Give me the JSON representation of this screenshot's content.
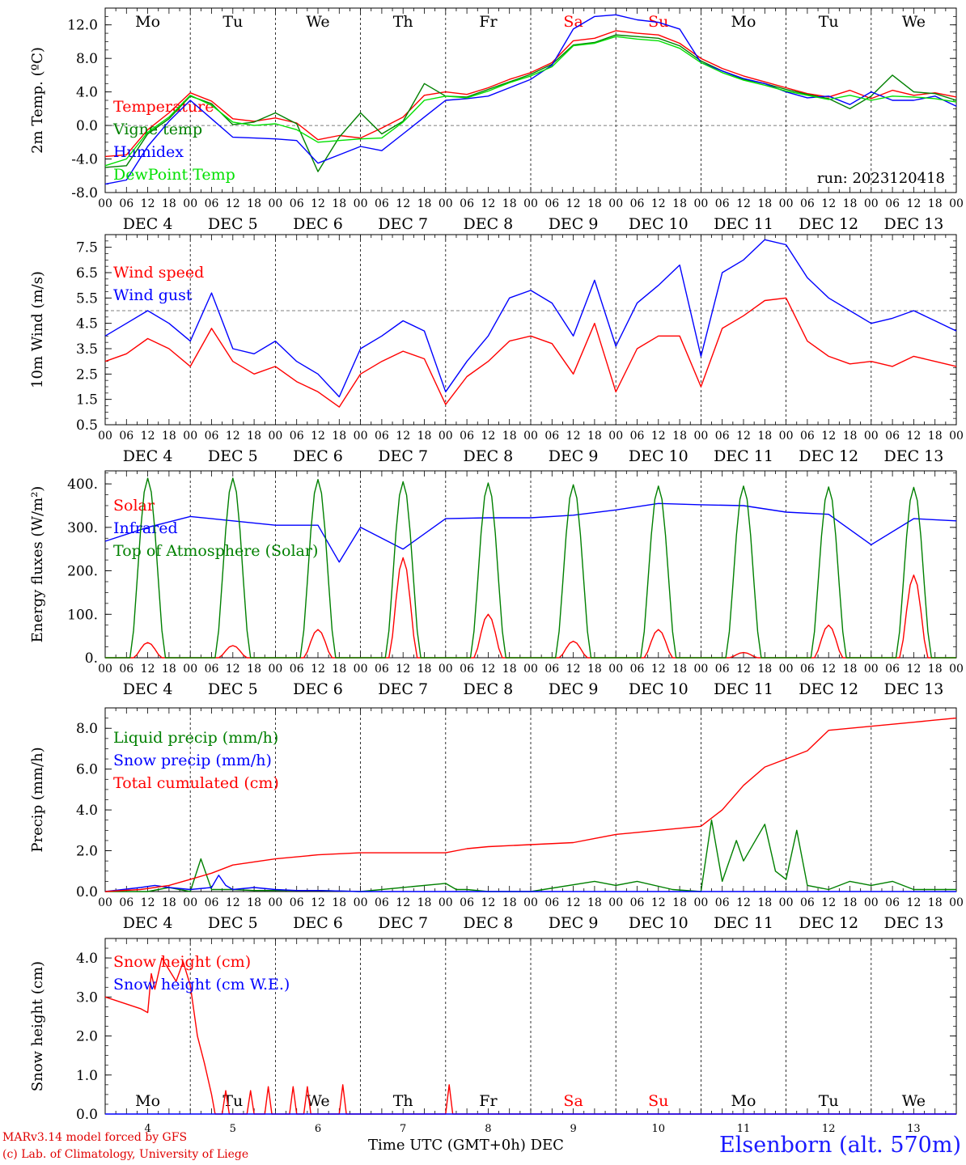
{
  "chart_data": [
    {
      "type": "line",
      "ylabel": "2m Temp. (ºC)",
      "ylim": [
        -8,
        14
      ],
      "yticks": [
        "-8.0",
        "-4.0",
        "0.0",
        "4.0",
        "8.0",
        "12.0"
      ],
      "ytick_values": [
        -8,
        -4,
        0,
        4,
        8,
        12
      ],
      "reference_line": 0,
      "day_names": [
        "Mo",
        "Tu",
        "We",
        "Th",
        "Fr",
        "Sa",
        "Su",
        "Mo",
        "Tu",
        "We"
      ],
      "weekend_color": "#ff0000",
      "annotation": "run: 2023120418",
      "x_unit": "hours since 2023-12-04 00 UTC",
      "series": [
        {
          "name": "Temperature",
          "color": "#ff0000",
          "x": [
            0,
            6,
            12,
            18,
            24,
            30,
            36,
            42,
            48,
            54,
            60,
            66,
            72,
            78,
            84,
            90,
            96,
            102,
            108,
            114,
            120,
            126,
            132,
            138,
            144,
            150,
            156,
            162,
            168,
            174,
            180,
            186,
            192,
            198,
            204,
            210,
            216,
            222,
            228,
            234,
            240
          ],
          "y": [
            -3.7,
            -3.5,
            -0.5,
            1.5,
            3.9,
            2.9,
            0.8,
            0.5,
            0.9,
            0.3,
            -1.7,
            -1.2,
            -1.5,
            -0.3,
            1.0,
            3.6,
            4.0,
            3.7,
            4.5,
            5.5,
            6.3,
            7.5,
            10.1,
            10.4,
            11.3,
            11.0,
            10.8,
            9.8,
            8.0,
            6.8,
            5.9,
            5.2,
            4.5,
            3.8,
            3.4,
            4.2,
            3.2,
            4.2,
            3.6,
            3.9,
            3.4
          ]
        },
        {
          "name": "Vigne temp",
          "color": "#008000",
          "x": [
            0,
            6,
            12,
            18,
            24,
            30,
            36,
            42,
            48,
            54,
            60,
            66,
            72,
            78,
            84,
            90,
            96,
            102,
            108,
            114,
            120,
            126,
            132,
            138,
            144,
            150,
            156,
            162,
            168,
            174,
            180,
            186,
            192,
            198,
            204,
            210,
            216,
            222,
            228,
            234,
            240
          ],
          "y": [
            -5.0,
            -4.8,
            -1.0,
            0.8,
            3.5,
            2.6,
            0.1,
            0.4,
            1.5,
            0.2,
            -5.5,
            -1.4,
            1.5,
            -1.0,
            0.5,
            5.0,
            3.5,
            3.4,
            4.3,
            5.2,
            6.1,
            7.3,
            9.6,
            9.9,
            10.8,
            10.6,
            10.4,
            9.5,
            7.7,
            6.5,
            5.5,
            5.0,
            4.3,
            3.7,
            3.2,
            2.0,
            3.5,
            6.0,
            4.0,
            3.8,
            3.0
          ]
        },
        {
          "name": "Humidex",
          "color": "#0000ff",
          "x": [
            0,
            6,
            12,
            18,
            24,
            30,
            36,
            42,
            48,
            54,
            60,
            66,
            72,
            78,
            84,
            90,
            96,
            102,
            108,
            114,
            120,
            126,
            132,
            138,
            144,
            150,
            156,
            162,
            168,
            174,
            180,
            186,
            192,
            198,
            204,
            210,
            216,
            222,
            228,
            234,
            240
          ],
          "y": [
            -7.0,
            -6.5,
            -2.5,
            0.5,
            3.0,
            0.8,
            -1.4,
            -1.5,
            -1.6,
            -1.8,
            -4.5,
            -3.5,
            -2.5,
            -3.0,
            -1.0,
            1.0,
            3.0,
            3.2,
            3.5,
            4.5,
            5.5,
            7.2,
            11.5,
            13.0,
            13.2,
            12.6,
            12.3,
            11.5,
            7.5,
            6.5,
            5.6,
            5.0,
            4.0,
            3.3,
            3.5,
            2.5,
            4.0,
            3.0,
            3.0,
            3.5,
            2.3
          ]
        },
        {
          "name": "DewPoint Temp",
          "color": "#00e000",
          "x": [
            0,
            6,
            12,
            18,
            24,
            30,
            36,
            42,
            48,
            54,
            60,
            66,
            72,
            78,
            84,
            90,
            96,
            102,
            108,
            114,
            120,
            126,
            132,
            138,
            144,
            150,
            156,
            162,
            168,
            174,
            180,
            186,
            192,
            198,
            204,
            210,
            216,
            222,
            228,
            234,
            240
          ],
          "y": [
            -4.8,
            -4.0,
            -0.8,
            1.0,
            3.6,
            2.4,
            0.4,
            0.0,
            0.2,
            -0.5,
            -2.0,
            -1.8,
            -1.6,
            -1.5,
            0.4,
            3.0,
            3.5,
            3.3,
            4.1,
            5.1,
            5.9,
            7.0,
            9.5,
            9.8,
            10.6,
            10.3,
            10.1,
            9.2,
            7.5,
            6.3,
            5.4,
            4.8,
            4.1,
            3.6,
            3.1,
            3.6,
            3.0,
            3.5,
            3.4,
            3.2,
            2.8
          ]
        }
      ]
    },
    {
      "type": "line",
      "ylabel": "10m Wind (m/s)",
      "ylim": [
        0.5,
        8.0
      ],
      "yticks": [
        "0.5",
        "1.5",
        "2.5",
        "3.5",
        "4.5",
        "5.5",
        "6.5",
        "7.5"
      ],
      "ytick_values": [
        0.5,
        1.5,
        2.5,
        3.5,
        4.5,
        5.5,
        6.5,
        7.5
      ],
      "reference_line": 5,
      "x_unit": "hours since 2023-12-04 00 UTC",
      "series": [
        {
          "name": "Wind speed",
          "color": "#ff0000",
          "x": [
            0,
            6,
            12,
            18,
            24,
            30,
            36,
            42,
            48,
            54,
            60,
            66,
            72,
            78,
            84,
            90,
            96,
            102,
            108,
            114,
            120,
            126,
            132,
            138,
            144,
            150,
            156,
            162,
            168,
            174,
            180,
            186,
            192,
            198,
            204,
            210,
            216,
            222,
            228,
            234,
            240
          ],
          "y": [
            3.0,
            3.3,
            3.9,
            3.5,
            2.8,
            4.3,
            3.0,
            2.5,
            2.8,
            2.2,
            1.8,
            1.2,
            2.5,
            3.0,
            3.4,
            3.1,
            1.3,
            2.4,
            3.0,
            3.8,
            4.0,
            3.7,
            2.5,
            4.5,
            1.8,
            3.5,
            4.0,
            4.0,
            2.0,
            4.3,
            4.8,
            5.4,
            5.5,
            3.8,
            3.2,
            2.9,
            3.0,
            2.8,
            3.2,
            3.0,
            2.8
          ]
        },
        {
          "name": "Wind gust",
          "color": "#0000ff",
          "x": [
            0,
            6,
            12,
            18,
            24,
            30,
            36,
            42,
            48,
            54,
            60,
            66,
            72,
            78,
            84,
            90,
            96,
            102,
            108,
            114,
            120,
            126,
            132,
            138,
            144,
            150,
            156,
            162,
            168,
            174,
            180,
            186,
            192,
            198,
            204,
            210,
            216,
            222,
            228,
            234,
            240
          ],
          "y": [
            4.0,
            4.5,
            5.0,
            4.5,
            3.8,
            5.7,
            3.5,
            3.3,
            3.8,
            3.0,
            2.5,
            1.6,
            3.5,
            4.0,
            4.6,
            4.2,
            1.8,
            3.0,
            4.0,
            5.5,
            5.8,
            5.3,
            4.0,
            6.2,
            3.6,
            5.3,
            6.0,
            6.8,
            3.2,
            6.5,
            7.0,
            7.8,
            7.6,
            6.3,
            5.5,
            5.0,
            4.5,
            4.7,
            5.0,
            4.6,
            4.2
          ]
        }
      ]
    },
    {
      "type": "line",
      "ylabel": "Energy fluxes (W/m²)",
      "ylim": [
        0,
        430
      ],
      "yticks": [
        "0.",
        "100.",
        "200.",
        "300.",
        "400."
      ],
      "ytick_values": [
        0,
        100,
        200,
        300,
        400
      ],
      "x_unit": "hours since 2023-12-04 00 UTC",
      "series": [
        {
          "name": "Solar",
          "color": "#ff0000",
          "daily_peak_hour": 12,
          "daily_peak_values": [
            35,
            28,
            65,
            230,
            100,
            38,
            65,
            12,
            75,
            190
          ]
        },
        {
          "name": "Infrared",
          "color": "#0000ff",
          "x": [
            0,
            12,
            24,
            36,
            48,
            60,
            66,
            72,
            84,
            96,
            108,
            120,
            132,
            144,
            156,
            168,
            180,
            192,
            204,
            216,
            228,
            240
          ],
          "y": [
            268,
            300,
            325,
            315,
            305,
            305,
            220,
            300,
            250,
            320,
            322,
            322,
            328,
            340,
            355,
            352,
            350,
            335,
            330,
            260,
            320,
            315
          ]
        },
        {
          "name": "Top of Atmosphere (Solar)",
          "color": "#008000",
          "daily_peak_hour": 12,
          "daily_peak_values": [
            413,
            413,
            410,
            405,
            402,
            398,
            395,
            395,
            393,
            392
          ]
        }
      ]
    },
    {
      "type": "line",
      "ylabel": "Precip (mm/h)",
      "ylim": [
        0,
        9
      ],
      "yticks": [
        "0.0",
        "2.0",
        "4.0",
        "6.0",
        "8.0"
      ],
      "ytick_values": [
        0,
        2,
        4,
        6,
        8
      ],
      "x_unit": "hours since 2023-12-04 00 UTC",
      "series": [
        {
          "name": "Liquid precip (mm/h)",
          "color": "#008000",
          "x": [
            0,
            12,
            18,
            24,
            27,
            30,
            36,
            42,
            48,
            60,
            72,
            96,
            99,
            102,
            108,
            120,
            138,
            144,
            150,
            160,
            168,
            171,
            174,
            178,
            180,
            186,
            189,
            192,
            195,
            198,
            204,
            210,
            216,
            222,
            228,
            234,
            240
          ],
          "y": [
            0,
            0,
            0.2,
            0,
            1.6,
            0.1,
            0.1,
            0.05,
            0.05,
            0.05,
            0,
            0.4,
            0.1,
            0.1,
            0,
            0,
            0.5,
            0.3,
            0.5,
            0.1,
            0,
            3.5,
            0.5,
            2.5,
            1.5,
            3.3,
            1.0,
            0.6,
            3.0,
            0.3,
            0.1,
            0.5,
            0.3,
            0.5,
            0.1,
            0.1,
            0.1
          ]
        },
        {
          "name": "Snow precip (mm/h)",
          "color": "#0000ff",
          "x": [
            0,
            10,
            14,
            18,
            24,
            30,
            32,
            34,
            36,
            42,
            48,
            54,
            60,
            72,
            240
          ],
          "y": [
            0,
            0.2,
            0.3,
            0.2,
            0.1,
            0.2,
            0.8,
            0.3,
            0.1,
            0.2,
            0.1,
            0.05,
            0.05,
            0,
            0
          ]
        },
        {
          "name": "Total cumulated (cm)",
          "color": "#ff0000",
          "x": [
            0,
            10,
            18,
            24,
            30,
            36,
            48,
            60,
            72,
            96,
            102,
            108,
            120,
            132,
            138,
            144,
            150,
            156,
            168,
            174,
            180,
            186,
            192,
            198,
            204,
            210,
            216,
            222,
            228,
            234,
            240
          ],
          "y": [
            0,
            0.1,
            0.3,
            0.6,
            0.9,
            1.3,
            1.6,
            1.8,
            1.9,
            1.9,
            2.1,
            2.2,
            2.3,
            2.4,
            2.6,
            2.8,
            2.9,
            3.0,
            3.2,
            4.0,
            5.2,
            6.1,
            6.5,
            6.9,
            7.9,
            8.0,
            8.1,
            8.2,
            8.3,
            8.4,
            8.5
          ]
        }
      ]
    },
    {
      "type": "line",
      "ylabel": "Snow height (cm)",
      "ylim": [
        0,
        4.5
      ],
      "yticks": [
        "0.0",
        "1.0",
        "2.0",
        "3.0",
        "4.0"
      ],
      "ytick_values": [
        0,
        1,
        2,
        3,
        4
      ],
      "x_unit": "hours since 2023-12-04 00 UTC",
      "day_names": [
        "Mo",
        "Tu",
        "We",
        "Th",
        "Fr",
        "Sa",
        "Su",
        "Mo",
        "Tu",
        "We"
      ],
      "weekend_color": "#ff0000",
      "bottom_labels": [
        "4",
        "5",
        "6",
        "7",
        "8",
        "9",
        "10",
        "11",
        "12",
        "13"
      ],
      "series": [
        {
          "name": "Snow height (cm)",
          "color": "#ff0000",
          "x": [
            0,
            5,
            10,
            12,
            13,
            14,
            16,
            18,
            20,
            22,
            24,
            26,
            28,
            30,
            31,
            33,
            34,
            35,
            40,
            41,
            42,
            45,
            46,
            47,
            52,
            53,
            54,
            56,
            57,
            58,
            66,
            67,
            68,
            70,
            96,
            97,
            98,
            240
          ],
          "y": [
            3.0,
            2.85,
            2.7,
            2.6,
            3.6,
            3.2,
            4.0,
            3.7,
            3.4,
            3.9,
            3.3,
            2.0,
            1.3,
            0.5,
            0,
            0,
            0.6,
            0,
            0,
            0.6,
            0,
            0,
            0.7,
            0,
            0,
            0.7,
            0,
            0,
            0.7,
            0,
            0,
            0.75,
            0,
            0,
            0,
            0.75,
            0,
            0
          ]
        },
        {
          "name": "Snow height (cm W.E.)",
          "color": "#0000ff",
          "x": [
            0,
            240
          ],
          "y": [
            0,
            0
          ]
        }
      ]
    }
  ],
  "x_axis": {
    "hour_ticks": [
      "00",
      "06",
      "12",
      "18"
    ],
    "day_labels": [
      "DEC  4",
      "DEC  5",
      "DEC  6",
      "DEC  7",
      "DEC  8",
      "DEC  9",
      "DEC 10",
      "DEC 11",
      "DEC 12",
      "DEC 13"
    ],
    "final_tick": "00"
  },
  "footer": {
    "model": "MARv3.14 model forced by GFS",
    "copyright": "(c) Lab. of Climatology, University of Liege",
    "xlabel": "Time UTC (GMT+0h) DEC",
    "station": "Elsenborn (alt. 570m)"
  }
}
